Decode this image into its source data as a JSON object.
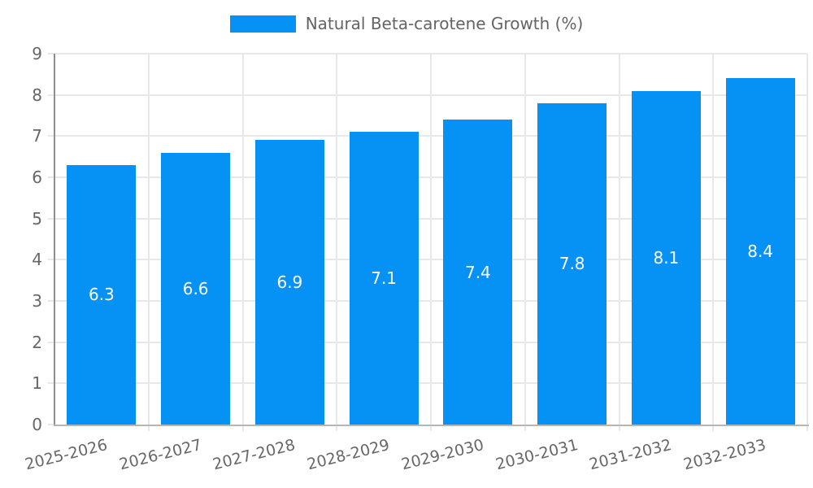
{
  "legend": {
    "label": "Natural Beta-carotene Growth (%)"
  },
  "chart_data": {
    "type": "bar",
    "title": "Natural Beta-carotene Growth (%)",
    "categories": [
      "2025-2026",
      "2026-2027",
      "2027-2028",
      "2028-2029",
      "2029-2030",
      "2030-2031",
      "2031-2032",
      "2032-2033"
    ],
    "values": [
      6.3,
      6.6,
      6.9,
      7.1,
      7.4,
      7.8,
      8.1,
      8.4
    ],
    "xlabel": "",
    "ylabel": "",
    "ylim": [
      0,
      9
    ],
    "ytick_step": 1,
    "grid": true,
    "legend_position": "top",
    "bar_color": "#0691f5",
    "data_label_color": "#ffffff",
    "tick_text_color": "#676767",
    "grid_color": "#e8e8e8",
    "y_axis_line_color": "#8e8e8e",
    "x_axis_line_color": "#b6b6b6"
  }
}
